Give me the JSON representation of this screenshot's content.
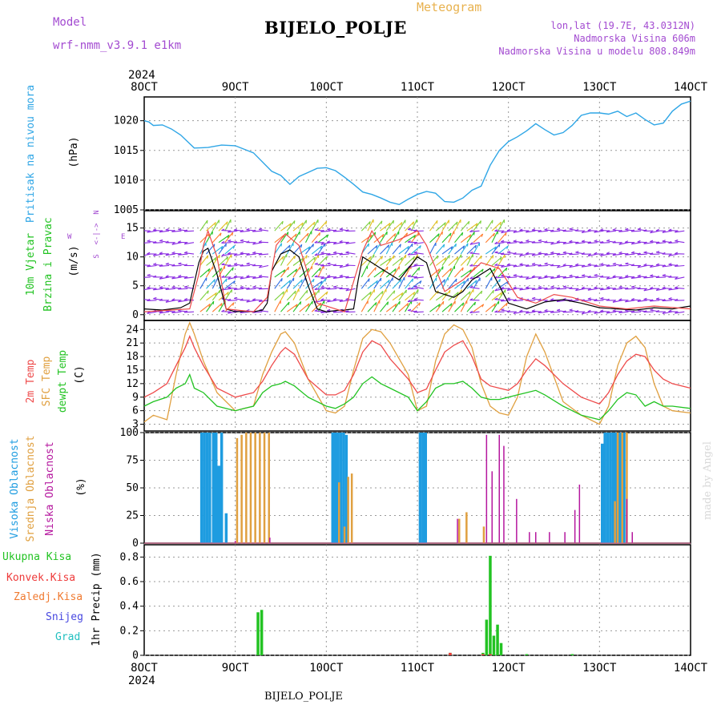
{
  "header": {
    "model_label": "Model",
    "model_name": "wrf-nmm_v3.9.1 e1km",
    "station_title": "BIJELO_POLJE",
    "meteogram_label": "Meteogram",
    "lonlat": "lon,lat (19.7E, 43.0312N)",
    "elevation": "Nadmorska Visina 606m",
    "model_elevation": "Nadmorska Visina u modelu 808.849m"
  },
  "footer": {
    "station": "BIJELO_POLJE",
    "signature": "made by Angel"
  },
  "time_axis": {
    "year": "2024",
    "labels": [
      "8OCT",
      "9OCT",
      "10OCT",
      "11OCT",
      "12OCT",
      "13OCT",
      "14OCT"
    ]
  },
  "colors": {
    "pressure": "#2fa6e6",
    "t2m": "#ee4a4a",
    "tsfc": "#e0a040",
    "dewpt": "#22c322",
    "high_cloud": "#1e9ce0",
    "mid_cloud": "#e0a040",
    "low_cloud": "#b5179e",
    "total_precip": "#22c322",
    "conv_precip": "#ee3a3a",
    "frz_precip": "#f07a30",
    "snow": "#4848e0",
    "hail": "#22c0c0",
    "wind_purple": "#8a2be2"
  },
  "labels": {
    "pressure": "Pritisak na nivou mora",
    "pressure_unit": "(hPa)",
    "wind_line1": "10m Vjetar",
    "wind_line2": "Brzina i Pravac",
    "wind_unit": "(m/s)",
    "compass_w": "W",
    "compass_e": "E",
    "compass_axis": "<-|->",
    "compass_n": "N",
    "compass_s": "S",
    "temp_2m": "2m Temp",
    "temp_sfc": "SFC Temp",
    "temp_dew": "dewpt Temp",
    "temp_unit": "(C)",
    "cloud_high": "Visoka Oblacnost",
    "cloud_mid": "Srednja Oblacnost",
    "cloud_low": "Niska Oblacnost",
    "cloud_unit": "(%)",
    "precip_total": "Ukupna Kisa",
    "precip_conv": "Konvek.Kisa",
    "precip_frz": "Zaledj.Kisa",
    "precip_snow": "Snijeg",
    "precip_hail": "Grad",
    "precip_axis": "1hr Precip (mm)"
  },
  "chart_data": [
    {
      "type": "line",
      "panel": "pressure",
      "ylabel": "(hPa)",
      "ylim": [
        1005,
        1024
      ],
      "yticks": [
        1005,
        1010,
        1015,
        1020
      ],
      "grid": true,
      "series": [
        {
          "name": "Pritisak na nivou mora",
          "x": [
            0,
            0.05,
            0.1,
            0.2,
            0.3,
            0.4,
            0.55,
            0.7,
            0.85,
            1.0,
            1.2,
            1.4,
            1.5,
            1.6,
            1.7,
            1.8,
            1.9,
            2.0,
            2.1,
            2.2,
            2.3,
            2.4,
            2.5,
            2.6,
            2.7,
            2.8,
            2.9,
            3.0,
            3.1,
            3.2,
            3.3,
            3.4,
            3.5,
            3.6,
            3.7,
            3.8,
            3.9,
            4.0,
            4.1,
            4.2,
            4.3,
            4.4,
            4.5,
            4.6,
            4.7,
            4.8,
            4.9,
            5.0,
            5.1,
            5.2,
            5.3,
            5.4,
            5.5,
            5.6,
            5.7,
            5.8,
            5.9,
            6.0
          ],
          "values": [
            1020,
            1019.8,
            1019.2,
            1019.3,
            1018.6,
            1017.6,
            1015.4,
            1015.5,
            1015.9,
            1015.8,
            1014.6,
            1011.5,
            1010.8,
            1009.3,
            1010.6,
            1011.3,
            1012.0,
            1012.1,
            1011.6,
            1010.5,
            1009.3,
            1008.0,
            1007.6,
            1007.0,
            1006.3,
            1005.9,
            1006.8,
            1007.6,
            1008.1,
            1007.8,
            1006.4,
            1006.3,
            1007.0,
            1008.3,
            1009.0,
            1012.5,
            1015.0,
            1016.5,
            1017.3,
            1018.3,
            1019.5,
            1018.5,
            1017.6,
            1018.0,
            1019.2,
            1020.9,
            1021.3,
            1021.3,
            1021.1,
            1021.6,
            1020.7,
            1021.3,
            1020.2,
            1019.3,
            1019.6,
            1021.6,
            1022.8,
            1023.3
          ]
        }
      ]
    },
    {
      "type": "line",
      "panel": "wind",
      "ylabel": "(m/s)",
      "ylim": [
        -1,
        18
      ],
      "yticks": [
        0,
        5,
        10,
        15
      ],
      "grid": true,
      "series": [
        {
          "name": "10m wind speed",
          "x": [
            0,
            0.2,
            0.4,
            0.5,
            0.6,
            0.65,
            0.7,
            0.8,
            0.9,
            1.0,
            1.1,
            1.2,
            1.3,
            1.35,
            1.4,
            1.5,
            1.6,
            1.7,
            1.8,
            1.9,
            2.0,
            2.1,
            2.2,
            2.3,
            2.35,
            2.4,
            2.5,
            2.6,
            2.7,
            2.8,
            2.9,
            3.0,
            3.1,
            3.2,
            3.4,
            3.5,
            3.6,
            3.7,
            3.8,
            4.0,
            4.2,
            4.4,
            4.6,
            4.8,
            5.0,
            5.2,
            5.4,
            5.6,
            5.8,
            6.0
          ],
          "values": [
            1,
            0.8,
            1.2,
            2,
            9,
            11,
            11.5,
            7,
            1,
            0.5,
            0.6,
            0.5,
            0.8,
            2,
            7.5,
            10.5,
            11.2,
            10,
            5,
            1,
            0.5,
            0.7,
            0.8,
            1,
            6,
            10,
            9,
            8,
            7,
            6,
            8,
            10,
            9,
            4,
            3,
            4,
            6,
            7,
            8,
            2,
            1,
            2.2,
            2.6,
            2,
            1.2,
            1,
            0.8,
            1.2,
            1,
            1.5
          ]
        },
        {
          "name": "10m wind gust",
          "x": [
            0,
            0.3,
            0.5,
            0.6,
            0.65,
            0.7,
            0.8,
            0.9,
            1.2,
            1.35,
            1.45,
            1.55,
            1.7,
            1.9,
            2.2,
            2.4,
            2.5,
            2.6,
            2.8,
            3.0,
            3.1,
            3.3,
            3.5,
            3.7,
            3.9,
            4.1,
            4.3,
            4.5,
            4.7,
            5.0,
            5.3,
            5.6,
            6.0
          ],
          "values": [
            0.5,
            0.8,
            1,
            7,
            12,
            14.5,
            10,
            1,
            0.5,
            3,
            12,
            14,
            12,
            2,
            0.5,
            11,
            14.5,
            12,
            13,
            14.5,
            12,
            4,
            6,
            9,
            8,
            3,
            2,
            3.5,
            3,
            1.5,
            1,
            1.5,
            1
          ]
        }
      ]
    },
    {
      "type": "line",
      "panel": "temperature",
      "ylabel": "(C)",
      "ylim": [
        1.5,
        26
      ],
      "yticks": [
        3,
        6,
        9,
        12,
        15,
        18,
        21,
        24
      ],
      "grid": true,
      "series": [
        {
          "name": "2m Temp",
          "x": [
            0,
            0.1,
            0.25,
            0.35,
            0.45,
            0.5,
            0.55,
            0.65,
            0.8,
            1.0,
            1.1,
            1.2,
            1.3,
            1.4,
            1.5,
            1.55,
            1.65,
            1.8,
            2.0,
            2.1,
            2.2,
            2.3,
            2.4,
            2.5,
            2.6,
            2.7,
            2.9,
            3.0,
            3.1,
            3.2,
            3.3,
            3.4,
            3.5,
            3.6,
            3.7,
            3.8,
            3.9,
            4.0,
            4.1,
            4.2,
            4.3,
            4.4,
            4.6,
            4.8,
            5.0,
            5.1,
            5.2,
            5.3,
            5.4,
            5.5,
            5.6,
            5.7,
            5.8,
            6.0
          ],
          "values": [
            9,
            10,
            12,
            16,
            20,
            22.5,
            20,
            16,
            11,
            9,
            9.5,
            10,
            12.5,
            16,
            19,
            20,
            18.5,
            13,
            9.5,
            9.5,
            10.5,
            14,
            19,
            21.5,
            20.5,
            17.5,
            13,
            10,
            10.8,
            15,
            19,
            20.5,
            21.5,
            18,
            13,
            11.5,
            11,
            10.5,
            12,
            15,
            17.5,
            16,
            12,
            9,
            7.5,
            10,
            14,
            17,
            18.5,
            18,
            15,
            13,
            12,
            11
          ]
        },
        {
          "name": "SFC Temp",
          "x": [
            0,
            0.1,
            0.25,
            0.35,
            0.45,
            0.5,
            0.55,
            0.65,
            0.8,
            1.0,
            1.1,
            1.2,
            1.3,
            1.4,
            1.5,
            1.55,
            1.65,
            1.8,
            2.0,
            2.1,
            2.2,
            2.3,
            2.4,
            2.5,
            2.6,
            2.7,
            2.9,
            3.0,
            3.1,
            3.2,
            3.3,
            3.4,
            3.5,
            3.6,
            3.7,
            3.8,
            3.9,
            4.0,
            4.1,
            4.2,
            4.3,
            4.4,
            4.6,
            4.8,
            5.0,
            5.1,
            5.2,
            5.3,
            5.4,
            5.5,
            5.6,
            5.7,
            5.8,
            6.0
          ],
          "values": [
            3.5,
            5,
            4,
            14,
            23,
            25.5,
            23,
            17,
            10,
            6,
            6.5,
            7,
            14,
            19,
            23,
            23.5,
            21,
            13,
            6,
            5.5,
            7,
            15,
            22,
            24,
            23.5,
            21,
            14,
            6,
            7,
            17,
            23,
            25,
            24,
            20,
            12,
            7,
            5.5,
            5,
            9,
            18,
            23,
            19,
            8,
            5,
            3,
            7,
            16,
            21,
            22.5,
            20,
            12,
            7,
            6,
            5.5
          ]
        },
        {
          "name": "dewpt Temp",
          "x": [
            0,
            0.1,
            0.25,
            0.35,
            0.45,
            0.5,
            0.55,
            0.65,
            0.8,
            1.0,
            1.1,
            1.2,
            1.3,
            1.4,
            1.5,
            1.55,
            1.65,
            1.8,
            2.0,
            2.1,
            2.2,
            2.3,
            2.4,
            2.5,
            2.6,
            2.7,
            2.9,
            3.0,
            3.1,
            3.2,
            3.3,
            3.4,
            3.5,
            3.6,
            3.7,
            3.8,
            3.9,
            4.0,
            4.1,
            4.2,
            4.3,
            4.4,
            4.6,
            4.8,
            5.0,
            5.1,
            5.2,
            5.3,
            5.4,
            5.5,
            5.6,
            5.7,
            5.8,
            6.0
          ],
          "values": [
            7,
            8,
            9,
            11,
            12,
            14,
            11,
            10,
            7,
            6,
            6.5,
            7,
            10,
            11.5,
            12,
            12.5,
            11.5,
            9,
            7,
            6.5,
            7.5,
            9,
            12,
            13.5,
            12,
            11,
            9,
            6,
            8,
            11,
            12,
            12,
            12.5,
            11,
            9,
            8.5,
            8.5,
            9,
            9.5,
            10,
            10.5,
            9.5,
            7,
            5,
            4,
            6,
            8.5,
            10,
            9.5,
            7,
            8,
            7,
            7,
            6.5
          ]
        }
      ]
    },
    {
      "type": "bar",
      "panel": "clouds",
      "ylabel": "(%)",
      "ylim": [
        0,
        100
      ],
      "yticks": [
        0,
        25,
        50,
        75,
        100
      ],
      "grid": true,
      "series": [
        {
          "name": "Visoka Oblacnost",
          "x": [
            0.63,
            0.66,
            0.69,
            0.72,
            0.76,
            0.79,
            0.82,
            0.85,
            0.9,
            2.07,
            2.1,
            2.13,
            2.16,
            2.19,
            2.22,
            3.03,
            3.06,
            3.09,
            5.03,
            5.06,
            5.09,
            5.12,
            5.15,
            5.18,
            5.21,
            5.24,
            5.27
          ],
          "values": [
            100,
            100,
            100,
            100,
            100,
            100,
            70,
            100,
            27,
            100,
            100,
            100,
            100,
            100,
            98,
            100,
            100,
            100,
            90,
            100,
            100,
            100,
            100,
            100,
            100,
            100,
            100
          ]
        },
        {
          "name": "Srednja Oblacnost",
          "x": [
            1.02,
            1.07,
            1.12,
            1.17,
            1.22,
            1.27,
            1.32,
            1.37,
            2.14,
            2.2,
            2.24,
            2.28,
            3.46,
            3.54,
            3.73,
            5.17,
            5.2,
            5.25,
            5.3
          ],
          "values": [
            95,
            98,
            100,
            100,
            100,
            100,
            100,
            100,
            55,
            15,
            60,
            63,
            22,
            28,
            15,
            38,
            100,
            100,
            100
          ]
        },
        {
          "name": "Niska Oblacnost",
          "x": [
            1.0,
            1.38,
            3.44,
            3.76,
            3.82,
            3.9,
            3.95,
            4.09,
            4.23,
            4.3,
            4.45,
            4.62,
            4.73,
            4.78,
            5.3,
            5.36
          ],
          "values": [
            2,
            5,
            22,
            98,
            65,
            98,
            88,
            40,
            10,
            10,
            10,
            10,
            30,
            53,
            40,
            10
          ]
        }
      ]
    },
    {
      "type": "bar",
      "panel": "precip",
      "ylabel": "1hr Precip (mm)",
      "ylim": [
        0,
        0.9
      ],
      "yticks": [
        0,
        0.2,
        0.4,
        0.6,
        0.8
      ],
      "grid": true,
      "series": [
        {
          "name": "Ukupna Kisa",
          "x": [
            1.25,
            1.29,
            3.36,
            3.72,
            3.76,
            3.8,
            3.84,
            3.88,
            3.92,
            4.2,
            4.7
          ],
          "values": [
            0.35,
            0.37,
            0.02,
            0.02,
            0.29,
            0.81,
            0.16,
            0.25,
            0.1,
            0.01,
            0.01
          ]
        },
        {
          "name": "Konvek.Kisa",
          "x": [
            3.36,
            3.72,
            3.8
          ],
          "values": [
            0.02,
            0.01,
            0.01
          ]
        },
        {
          "name": "Zaledj.Kisa",
          "x": [],
          "values": []
        },
        {
          "name": "Snijeg",
          "x": [],
          "values": []
        },
        {
          "name": "Grad",
          "x": [],
          "values": []
        }
      ]
    }
  ]
}
